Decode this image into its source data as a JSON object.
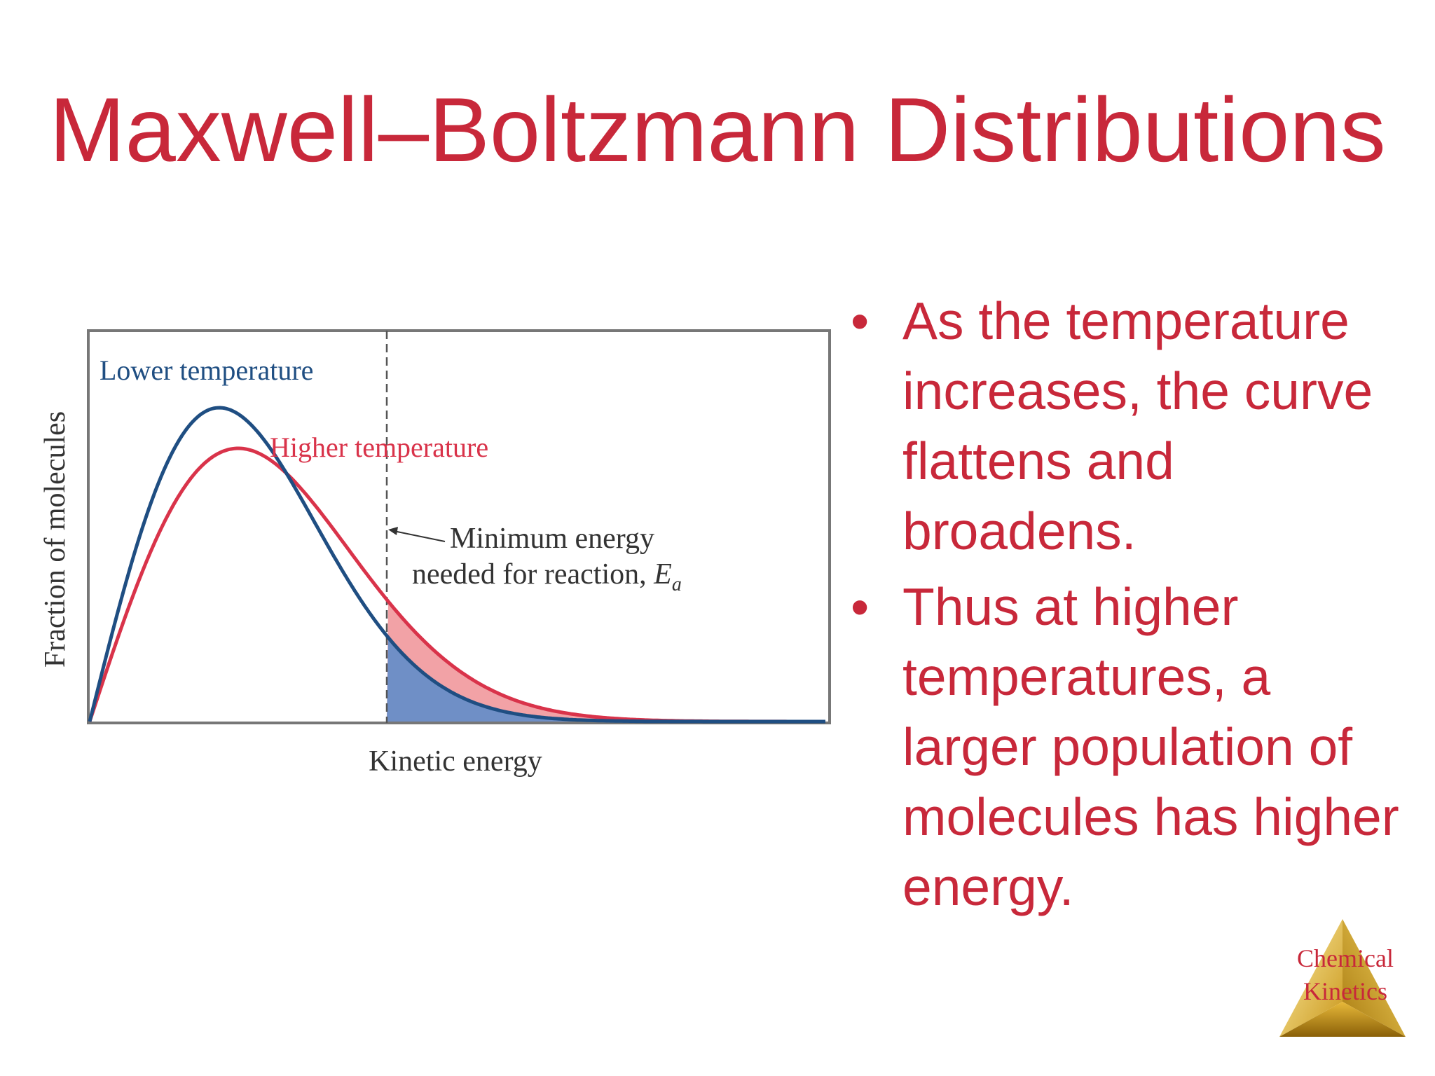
{
  "slide": {
    "title": "Maxwell–Boltzmann Distributions",
    "bullets": [
      "As the temperature increases, the curve flattens and broadens.",
      "Thus at higher temperatures, a larger population of molecules has higher energy."
    ],
    "bullet_glyph": "•",
    "badge": {
      "line1": "Chemical",
      "line2": "Kinetics"
    }
  },
  "colors": {
    "title": "#c8283a",
    "lower_curve": "#1f4e82",
    "higher_curve": "#d9334a",
    "frame": "#777777",
    "badge_gold": "#e7c34a"
  },
  "figure": {
    "xlabel": "Kinetic energy",
    "ylabel": "Fraction of molecules",
    "lower_label": "Lower temperature",
    "higher_label": "Higher temperature",
    "threshold_line1": "Minimum energy",
    "threshold_line2": "needed for reaction, ",
    "threshold_symbol": "E",
    "threshold_subscript": "a"
  }
}
